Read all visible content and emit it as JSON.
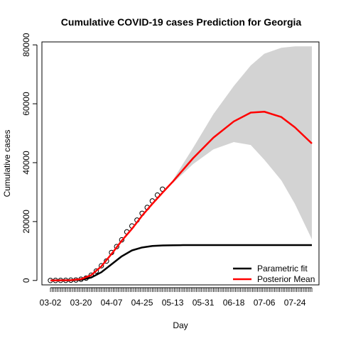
{
  "chart_data": {
    "type": "line",
    "title": "Cumulative COVID-19 cases Prediction for Georgia",
    "xlabel": "Day",
    "ylabel": "Cumulative cases",
    "xlim": [
      "2020-03-02",
      "2020-08-03"
    ],
    "ylim": [
      -1500,
      81000
    ],
    "x_tick_labels": [
      "03-02",
      "03-20",
      "04-07",
      "04-25",
      "05-13",
      "05-31",
      "06-18",
      "07-06",
      "07-24"
    ],
    "x_tick_dates": [
      "2020-03-02",
      "2020-03-20",
      "2020-04-07",
      "2020-04-25",
      "2020-05-13",
      "2020-05-31",
      "2020-06-18",
      "2020-07-06",
      "2020-07-24"
    ],
    "y_ticks": [
      0,
      20000,
      40000,
      60000,
      80000
    ],
    "y_tick_labels": [
      "0",
      "20000",
      "40000",
      "60000",
      "80000"
    ],
    "grid": false,
    "legend_position": "bottom-right",
    "colors": {
      "parametric": "#000000",
      "posterior": "#ff0000",
      "band": "#d3d3d3",
      "points": "#000000"
    },
    "legend": [
      {
        "name": "Parametric fit",
        "color": "#000000"
      },
      {
        "name": "Posterior Mean",
        "color": "#ff0000"
      }
    ],
    "observed": {
      "x": [
        "2020-03-02",
        "2020-03-05",
        "2020-03-08",
        "2020-03-11",
        "2020-03-14",
        "2020-03-17",
        "2020-03-20",
        "2020-03-23",
        "2020-03-26",
        "2020-03-29",
        "2020-04-01",
        "2020-04-04",
        "2020-04-07",
        "2020-04-10",
        "2020-04-13",
        "2020-04-16",
        "2020-04-19",
        "2020-04-22",
        "2020-04-25",
        "2020-04-28",
        "2020-05-01",
        "2020-05-04",
        "2020-05-07"
      ],
      "y": [
        0,
        10,
        30,
        40,
        100,
        150,
        400,
        800,
        1800,
        3200,
        5000,
        6600,
        9500,
        11500,
        13800,
        16500,
        18500,
        20500,
        22800,
        24800,
        27000,
        29000,
        31000
      ]
    },
    "series": [
      {
        "name": "Parametric fit",
        "x": [
          "2020-03-02",
          "2020-03-14",
          "2020-03-20",
          "2020-03-26",
          "2020-04-01",
          "2020-04-07",
          "2020-04-13",
          "2020-04-19",
          "2020-04-25",
          "2020-05-01",
          "2020-05-07",
          "2020-05-13",
          "2020-05-19",
          "2020-06-01",
          "2020-06-18",
          "2020-07-06",
          "2020-08-03"
        ],
        "y": [
          0,
          60,
          250,
          1000,
          2800,
          5500,
          8200,
          10200,
          11200,
          11700,
          11900,
          11950,
          12000,
          12000,
          12000,
          12000,
          12000
        ]
      },
      {
        "name": "Posterior Mean",
        "x": [
          "2020-03-02",
          "2020-03-14",
          "2020-03-20",
          "2020-03-26",
          "2020-04-01",
          "2020-04-07",
          "2020-04-13",
          "2020-04-19",
          "2020-04-25",
          "2020-05-01",
          "2020-05-07",
          "2020-05-13",
          "2020-05-25",
          "2020-06-06",
          "2020-06-18",
          "2020-06-28",
          "2020-07-06",
          "2020-07-16",
          "2020-07-24",
          "2020-08-03"
        ],
        "y": [
          0,
          100,
          450,
          1800,
          4800,
          9000,
          13500,
          17500,
          22000,
          26000,
          29800,
          33500,
          41500,
          48500,
          54000,
          57000,
          57300,
          55500,
          52000,
          46500
        ]
      }
    ],
    "band": {
      "x": [
        "2020-05-13",
        "2020-05-25",
        "2020-06-06",
        "2020-06-18",
        "2020-06-28",
        "2020-07-06",
        "2020-07-16",
        "2020-07-24",
        "2020-08-03"
      ],
      "upper": [
        34000,
        45000,
        56500,
        66000,
        73000,
        77000,
        79000,
        79500,
        79500
      ],
      "lower": [
        33000,
        39500,
        44500,
        47000,
        46000,
        41000,
        34000,
        26000,
        14000
      ]
    }
  }
}
